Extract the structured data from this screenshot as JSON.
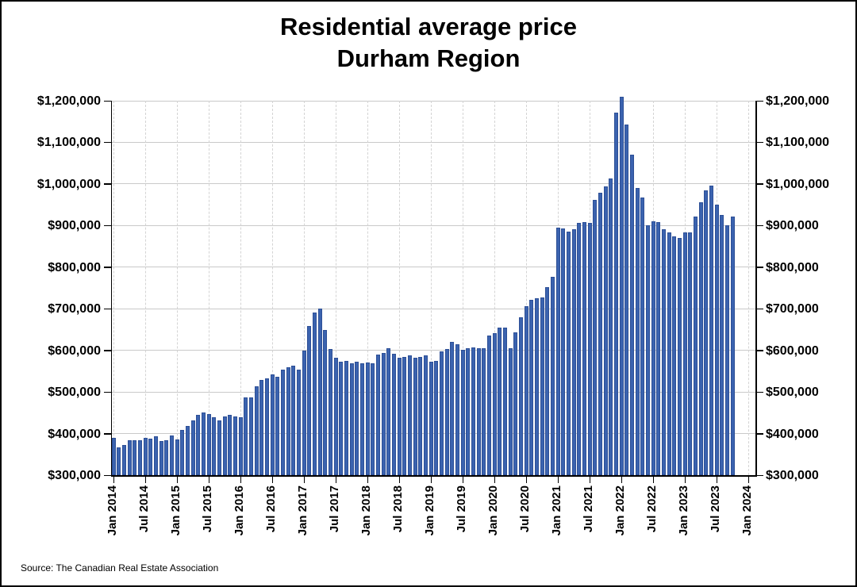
{
  "title": {
    "line1": "Residential average price",
    "line2": "Durham Region"
  },
  "source": "Source: The Canadian Real Estate Association",
  "colors": {
    "bar_fill": "#3b63af",
    "bar_border": "#2d4f96",
    "grid_horizontal": "#c9c9c9",
    "grid_vertical_dashed": "#d4d4d4",
    "axis": "#000000",
    "background": "#ffffff",
    "text": "#000000"
  },
  "y_axis": {
    "min": 300000,
    "max": 1200000,
    "step": 100000,
    "tick_labels": [
      "$300,000",
      "$400,000",
      "$500,000",
      "$600,000",
      "$700,000",
      "$800,000",
      "$900,000",
      "$1,000,000",
      "$1,100,000",
      "$1,200,000"
    ],
    "shown_on": "both sides"
  },
  "x_axis": {
    "tick_labels": [
      "Jan 2014",
      "Jul 2014",
      "Jan 2015",
      "Jul 2015",
      "Jan 2016",
      "Jul 2016",
      "Jan 2017",
      "Jul 2017",
      "Jan 2018",
      "Jul 2018",
      "Jan 2019",
      "Jul 2019",
      "Jan 2020",
      "Jul 2020",
      "Jan 2021",
      "Jul 2021",
      "Jan 2022",
      "Jul 2022",
      "Jan 2023",
      "Jul 2023",
      "Jan 2024"
    ],
    "label_rotation_deg": 90
  },
  "chart_data": {
    "type": "bar",
    "title": "Residential average price Durham Region",
    "x_start": "Jan 2014",
    "x_end": "Oct 2023",
    "x_frequency": "monthly",
    "ylim": [
      300000,
      1200000
    ],
    "grid": "horizontal solid every $100,000; vertical dashed every Jan/Jul",
    "legend": "none",
    "values": [
      390000,
      367000,
      372000,
      383000,
      384000,
      383000,
      390000,
      388000,
      393000,
      382000,
      384000,
      396000,
      386000,
      409000,
      418000,
      432000,
      445000,
      450000,
      447000,
      439000,
      432000,
      441000,
      445000,
      442000,
      439000,
      486000,
      487000,
      514000,
      528000,
      532000,
      543000,
      536000,
      553000,
      559000,
      564000,
      553000,
      599000,
      658000,
      690000,
      701000,
      648000,
      603000,
      582000,
      573000,
      575000,
      568000,
      573000,
      568000,
      571000,
      568000,
      590000,
      593000,
      605000,
      592000,
      582000,
      585000,
      587000,
      582000,
      584000,
      587000,
      572000,
      575000,
      598000,
      604000,
      620000,
      615000,
      601000,
      606000,
      607000,
      606000,
      605000,
      636000,
      641000,
      655000,
      655000,
      606000,
      643000,
      679000,
      706000,
      721000,
      725000,
      728000,
      752000,
      776000,
      895000,
      893000,
      886000,
      892000,
      906000,
      908000,
      906000,
      962000,
      979000,
      994000,
      1013000,
      1172000,
      1210000,
      1143000,
      1070000,
      990000,
      968000,
      900000,
      911000,
      908000,
      892000,
      884000,
      873000,
      871000,
      884000,
      884000,
      922000,
      955000,
      985000,
      996000,
      951000,
      926000,
      901000,
      922000
    ]
  }
}
